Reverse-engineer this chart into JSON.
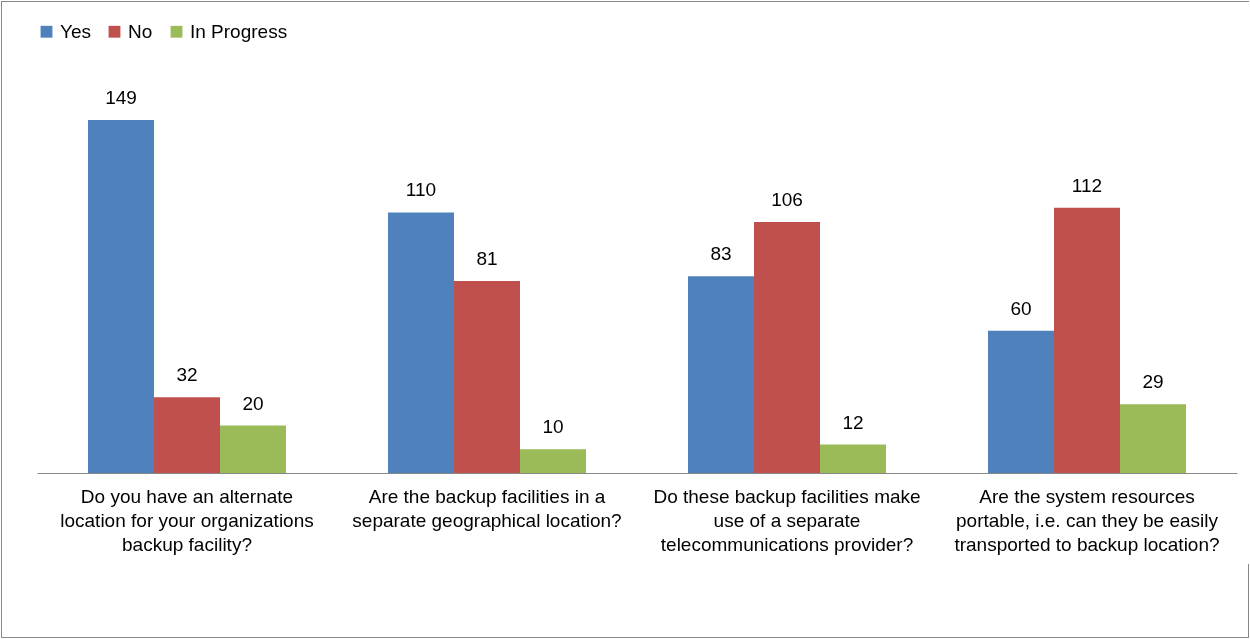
{
  "chart_data": {
    "type": "bar",
    "categories": [
      "Do you have an alternate location for your organizations backup facility?",
      "Are the backup facilities in a separate geographical location?",
      "Do these backup facilities make use of a separate telecommunications provider?",
      "Are the system resources portable, i.e. can they be easily transported to backup location?"
    ],
    "series": [
      {
        "name": "Yes",
        "color": "#4f81bd",
        "values": [
          149,
          110,
          83,
          60
        ]
      },
      {
        "name": "No",
        "color": "#c0504d",
        "values": [
          32,
          81,
          106,
          112
        ]
      },
      {
        "name": "In Progress",
        "color": "#9bbb59",
        "values": [
          20,
          10,
          12,
          29
        ]
      }
    ],
    "data_labels": true,
    "legend": "top",
    "grid": false
  }
}
